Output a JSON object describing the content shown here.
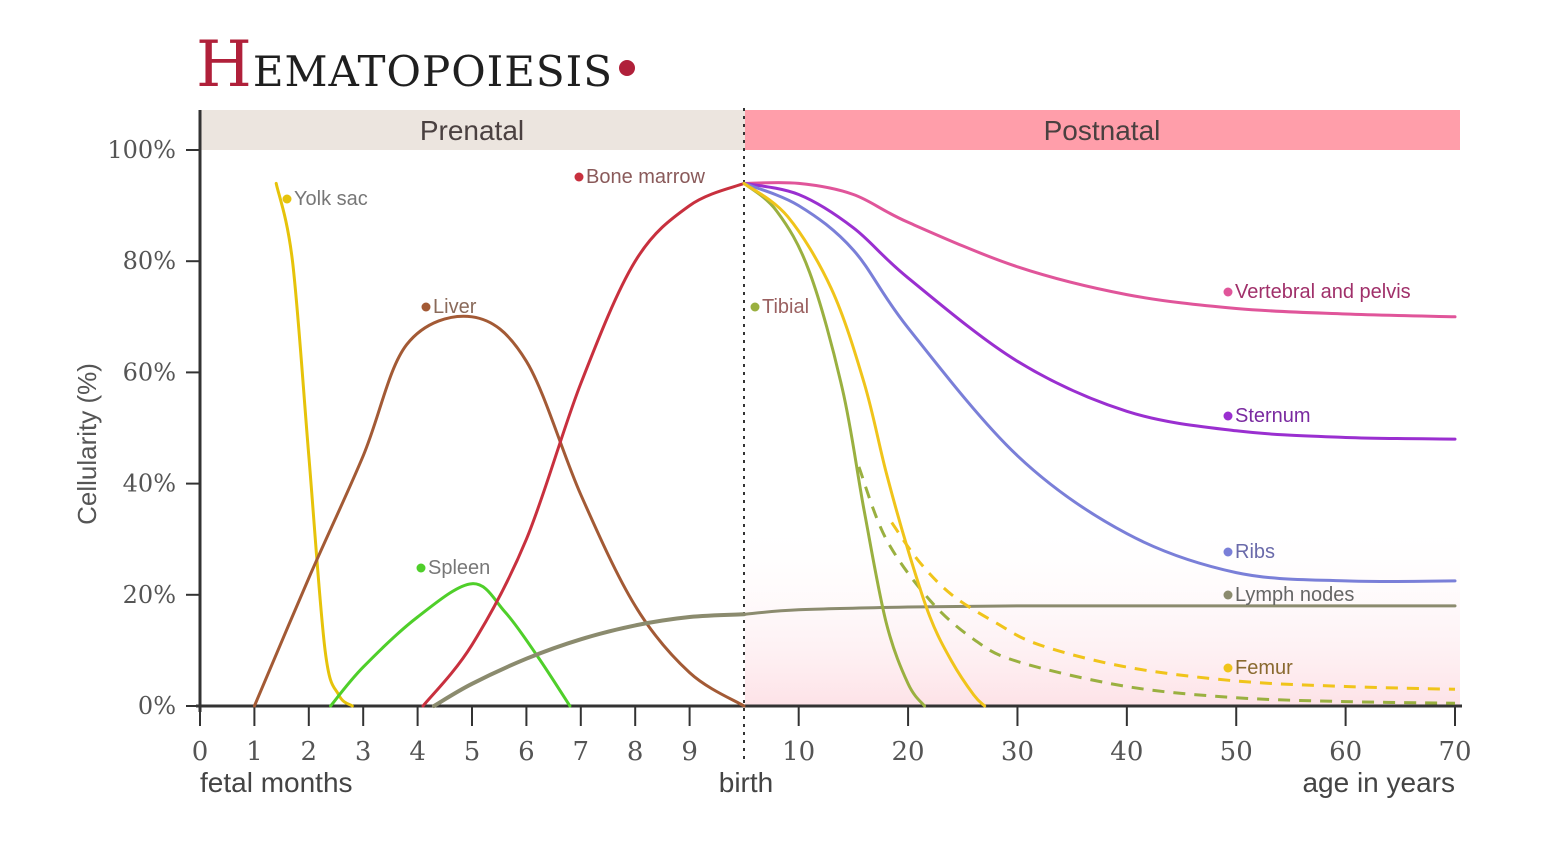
{
  "title": {
    "initial": "H",
    "rest": "EMATOPOIESIS"
  },
  "colors": {
    "accent": "#b0203a",
    "prenatal_band": "#ece5df",
    "postnatal_band": "#ff9eaa",
    "postnatal_fill": "#fde2e7"
  },
  "chart_data": {
    "type": "line",
    "title": "Hematopoiesis",
    "xlabel": "",
    "ylabel": "Cellularity (%)",
    "ylim": [
      0,
      100
    ],
    "periods": [
      "Prenatal",
      "Postnatal"
    ],
    "x_axis_prenatal": {
      "unit_label": "fetal months",
      "range": [
        0,
        10
      ],
      "ticks": [
        "0",
        "1",
        "2",
        "3",
        "4",
        "5",
        "6",
        "7",
        "8",
        "9"
      ]
    },
    "x_axis_postnatal": {
      "unit_label": "age in years",
      "range": [
        5,
        70
      ],
      "ticks": [
        "10",
        "20",
        "30",
        "40",
        "50",
        "60",
        "70"
      ]
    },
    "birth_label": "birth",
    "y_ticks": [
      "0%",
      "20%",
      "40%",
      "60%",
      "80%",
      "100%"
    ],
    "series": [
      {
        "name": "Yolk sac",
        "color": "#e6c30a",
        "phase": "prenatal",
        "points": [
          [
            1.4,
            94
          ],
          [
            1.7,
            80
          ],
          [
            2.0,
            45
          ],
          [
            2.3,
            10
          ],
          [
            2.55,
            2
          ],
          [
            2.8,
            0
          ]
        ]
      },
      {
        "name": "Liver",
        "color": "#a35a35",
        "phase": "prenatal",
        "points": [
          [
            1.0,
            0
          ],
          [
            2.0,
            23
          ],
          [
            3.0,
            45
          ],
          [
            3.8,
            65
          ],
          [
            5.0,
            70
          ],
          [
            6.0,
            62
          ],
          [
            7.0,
            38
          ],
          [
            8.0,
            18
          ],
          [
            9.0,
            6
          ],
          [
            10.0,
            0
          ]
        ]
      },
      {
        "name": "Spleen",
        "color": "#4fcf2a",
        "phase": "prenatal",
        "points": [
          [
            2.4,
            0
          ],
          [
            3.0,
            7
          ],
          [
            4.0,
            16
          ],
          [
            5.0,
            22
          ],
          [
            5.6,
            17
          ],
          [
            6.2,
            9
          ],
          [
            6.8,
            0
          ]
        ]
      },
      {
        "name": "Bone marrow",
        "color": "#c8303e",
        "phase": "prenatal",
        "points": [
          [
            4.1,
            0
          ],
          [
            5.0,
            11
          ],
          [
            6.0,
            30
          ],
          [
            7.0,
            58
          ],
          [
            8.0,
            80
          ],
          [
            9.0,
            90
          ],
          [
            10.0,
            94
          ]
        ]
      },
      {
        "name": "Vertebral and pelvis",
        "color": "#e0559a",
        "phase": "postnatal",
        "points": [
          [
            5,
            94
          ],
          [
            10,
            94
          ],
          [
            15,
            92
          ],
          [
            20,
            87
          ],
          [
            30,
            79
          ],
          [
            40,
            74
          ],
          [
            50,
            71.5
          ],
          [
            60,
            70.5
          ],
          [
            70,
            70
          ]
        ]
      },
      {
        "name": "Sternum",
        "color": "#9a2fd0",
        "phase": "postnatal",
        "points": [
          [
            5,
            94
          ],
          [
            10,
            92
          ],
          [
            15,
            86
          ],
          [
            20,
            77
          ],
          [
            30,
            62
          ],
          [
            40,
            53
          ],
          [
            50,
            49.5
          ],
          [
            60,
            48.3
          ],
          [
            70,
            48
          ]
        ]
      },
      {
        "name": "Ribs",
        "color": "#7a7fd8",
        "phase": "postnatal",
        "points": [
          [
            5,
            94
          ],
          [
            10,
            90
          ],
          [
            15,
            82
          ],
          [
            20,
            68
          ],
          [
            30,
            45
          ],
          [
            40,
            31
          ],
          [
            50,
            24
          ],
          [
            60,
            22.5
          ],
          [
            70,
            22.5
          ]
        ]
      },
      {
        "name": "Lymph nodes",
        "color": "#8b8b6e",
        "phase": "both",
        "points_prenatal": [
          [
            4.3,
            0
          ],
          [
            5.0,
            4
          ],
          [
            6.0,
            8.5
          ],
          [
            7.0,
            12
          ],
          [
            8.0,
            14.5
          ],
          [
            9.0,
            16
          ],
          [
            10.0,
            16.5
          ]
        ],
        "points": [
          [
            5,
            16.5
          ],
          [
            10,
            17.3
          ],
          [
            20,
            17.8
          ],
          [
            30,
            18
          ],
          [
            40,
            18
          ],
          [
            50,
            18
          ],
          [
            60,
            18
          ],
          [
            70,
            18
          ]
        ]
      },
      {
        "name": "Tibial",
        "color": "#9ab040",
        "phase": "postnatal",
        "points": [
          [
            5,
            94
          ],
          [
            8,
            89
          ],
          [
            11,
            78
          ],
          [
            14,
            57
          ],
          [
            16,
            35
          ],
          [
            18,
            15
          ],
          [
            20,
            4
          ],
          [
            21.5,
            0
          ]
        ],
        "dashed": [
          [
            15.5,
            43
          ],
          [
            18,
            30
          ],
          [
            22,
            19
          ],
          [
            26,
            12
          ],
          [
            30,
            8
          ],
          [
            40,
            3.5
          ],
          [
            50,
            1.5
          ],
          [
            60,
            0.8
          ],
          [
            70,
            0.5
          ]
        ]
      },
      {
        "name": "Femur",
        "color": "#f0c41a",
        "phase": "postnatal",
        "points": [
          [
            5,
            94
          ],
          [
            9,
            88
          ],
          [
            13,
            75
          ],
          [
            16,
            58
          ],
          [
            18,
            42
          ],
          [
            20,
            28
          ],
          [
            22,
            16
          ],
          [
            24,
            8
          ],
          [
            26,
            2
          ],
          [
            27,
            0
          ]
        ],
        "dashed": [
          [
            18.5,
            33
          ],
          [
            21,
            26
          ],
          [
            24,
            20
          ],
          [
            28,
            15
          ],
          [
            32,
            11
          ],
          [
            40,
            7
          ],
          [
            50,
            4.5
          ],
          [
            60,
            3.5
          ],
          [
            70,
            3
          ]
        ]
      }
    ]
  }
}
